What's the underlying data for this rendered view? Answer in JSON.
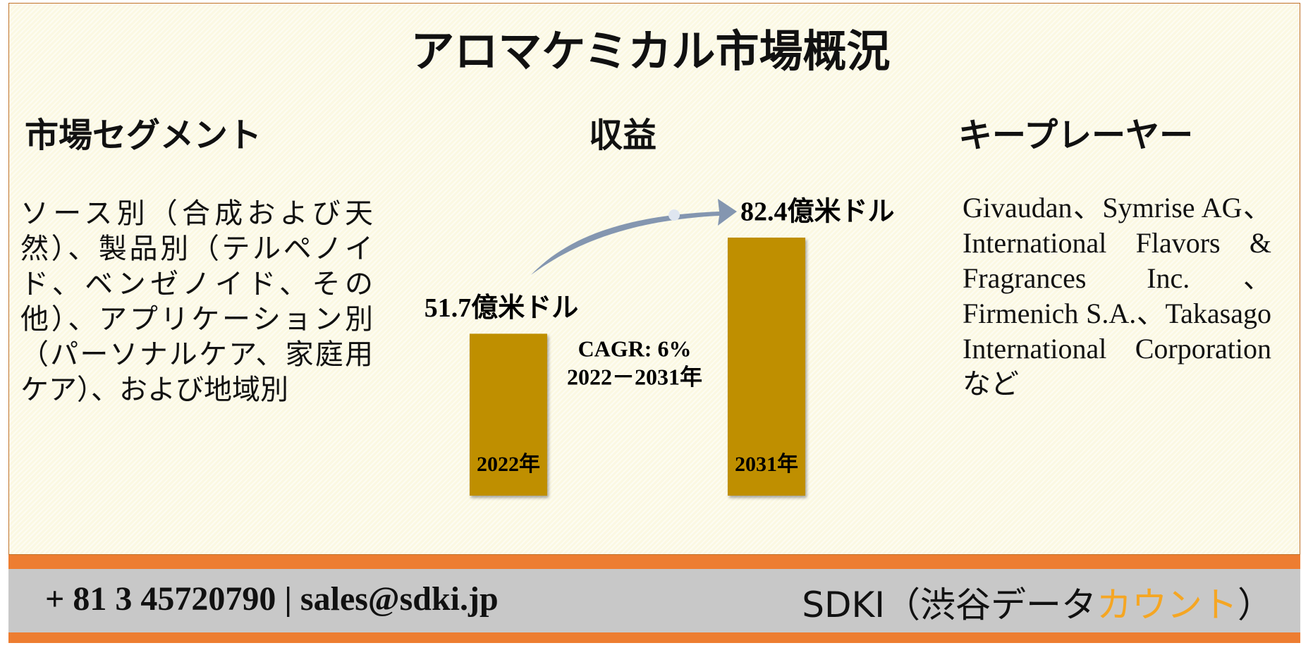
{
  "header": {
    "title": "アロマケミカル市場概況"
  },
  "segments": {
    "heading": "市場セグメント",
    "text": "ソース別（合成および天然）、製品別（テルペノイド、ベンゼノイド、その他）、アプリケーション別（パーソナルケア、家庭用ケア）、および地域別"
  },
  "revenue": {
    "heading": "収益",
    "type": "bar",
    "categories": [
      "2022年",
      "2031年"
    ],
    "values": [
      51.7,
      82.4
    ],
    "value_labels": [
      "51.7億米ドル",
      "82.4億米ドル"
    ],
    "color": "#bf8f00",
    "cagr": [
      "CAGR: 6%",
      "2022－2031年"
    ]
  },
  "key_players": {
    "heading": "キープレーヤー",
    "text": "Givaudan、Symrise AG、International Flavors & Fragrances Inc.、Firmenich S.A.、Takasago International Corporationなど"
  },
  "footer": {
    "contact": "+ 81 3 45720790 | sales@sdki.jp",
    "brand": [
      "SDKI（渋谷データ",
      "カウント",
      "）"
    ]
  }
}
